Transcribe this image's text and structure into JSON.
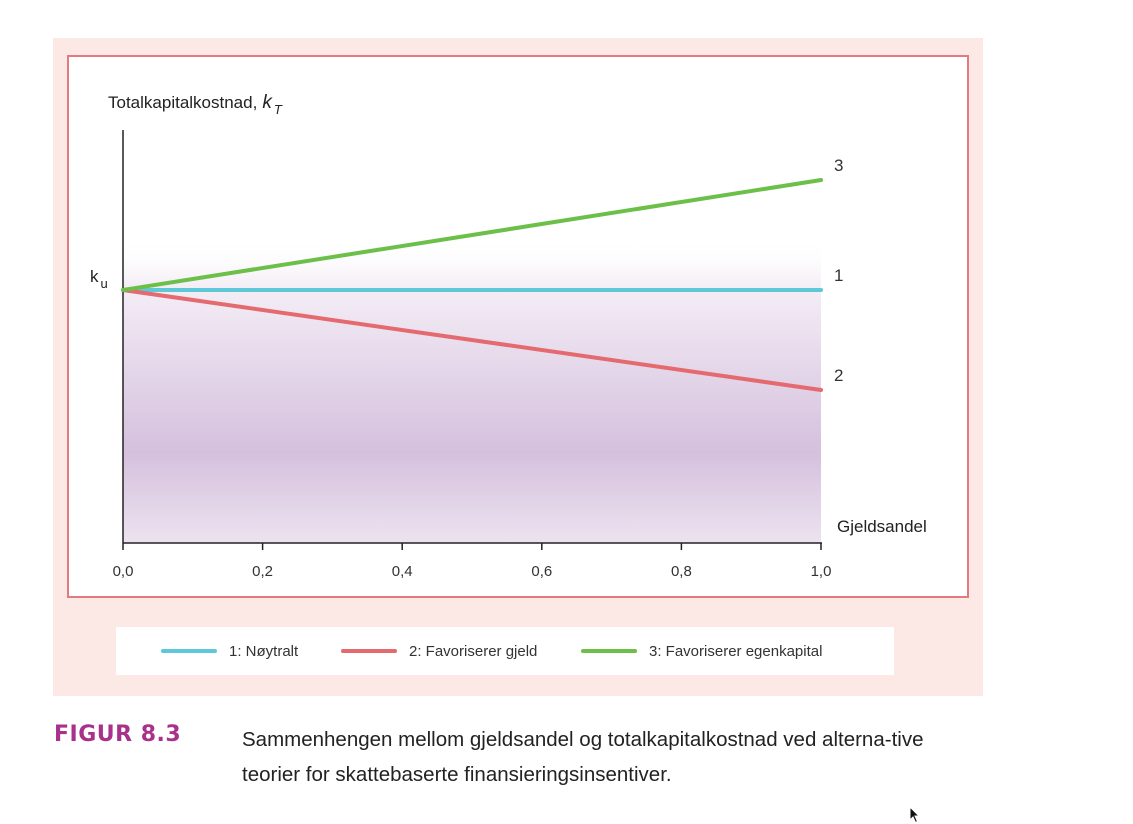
{
  "chart_data": {
    "type": "line",
    "ylabel": "Totalkapitalkostnad,",
    "ylabel_symbol": "k",
    "ylabel_subscript": "T",
    "xlabel": "Gjeldsandel",
    "xlim": [
      0,
      1.0
    ],
    "x_ticks": [
      "0,0",
      "0,2",
      "0,4",
      "0,6",
      "0,8",
      "1,0"
    ],
    "y_marker": {
      "label": "k",
      "subscript": "u",
      "value": 0
    },
    "grid": false,
    "legend_position": "bottom",
    "series": [
      {
        "name": "1: Nøytralt",
        "end_label": "1",
        "color": "#5ec8d8",
        "x": [
          0,
          1.0
        ],
        "y": [
          0,
          0
        ]
      },
      {
        "name": "2: Favoriserer gjeld",
        "end_label": "2",
        "color": "#e46a6f",
        "x": [
          0,
          1.0
        ],
        "y": [
          0,
          -1
        ]
      },
      {
        "name": "3: Favoriserer egenkapital",
        "end_label": "3",
        "color": "#6cc04a",
        "x": [
          0,
          1.0
        ],
        "y": [
          0,
          1.1
        ]
      }
    ]
  },
  "caption": {
    "label": "FIGUR 8.3",
    "text": "Sammenhengen mellom gjeldsandel og totalkapitalkostnad ved alterna-tive teorier for skattebaserte finansieringsinsentiver."
  }
}
